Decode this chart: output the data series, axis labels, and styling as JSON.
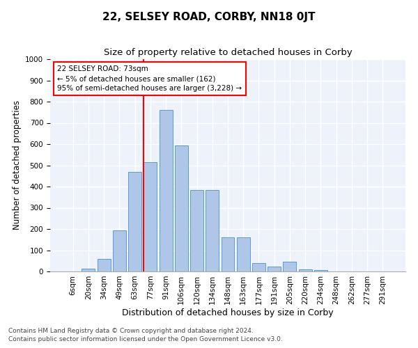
{
  "title": "22, SELSEY ROAD, CORBY, NN18 0JT",
  "subtitle": "Size of property relative to detached houses in Corby",
  "xlabel": "Distribution of detached houses by size in Corby",
  "ylabel": "Number of detached properties",
  "footer_line1": "Contains HM Land Registry data © Crown copyright and database right 2024.",
  "footer_line2": "Contains public sector information licensed under the Open Government Licence v3.0.",
  "bar_labels": [
    "6sqm",
    "20sqm",
    "34sqm",
    "49sqm",
    "63sqm",
    "77sqm",
    "91sqm",
    "106sqm",
    "120sqm",
    "134sqm",
    "148sqm",
    "163sqm",
    "177sqm",
    "191sqm",
    "205sqm",
    "220sqm",
    "234sqm",
    "248sqm",
    "262sqm",
    "277sqm",
    "291sqm"
  ],
  "bar_values": [
    0,
    12,
    60,
    192,
    470,
    515,
    760,
    595,
    383,
    383,
    160,
    160,
    40,
    22,
    45,
    10,
    7,
    0,
    0,
    0,
    0
  ],
  "bar_color": "#aec6e8",
  "bar_edge_color": "#5b9bd5",
  "vline_x": 5.0,
  "vline_color": "red",
  "annotation_text": "22 SELSEY ROAD: 73sqm\n← 5% of detached houses are smaller (162)\n95% of semi-detached houses are larger (3,228) →",
  "annotation_box_color": "white",
  "annotation_box_edge": "red",
  "ylim": [
    0,
    1000
  ],
  "yticks": [
    0,
    100,
    200,
    300,
    400,
    500,
    600,
    700,
    800,
    900,
    1000
  ],
  "bg_color": "#eef2fa",
  "grid_color": "white",
  "title_fontsize": 11,
  "subtitle_fontsize": 9.5,
  "xlabel_fontsize": 9,
  "ylabel_fontsize": 8.5,
  "tick_fontsize": 7.5,
  "annotation_fontsize": 7.5,
  "footer_fontsize": 6.5
}
